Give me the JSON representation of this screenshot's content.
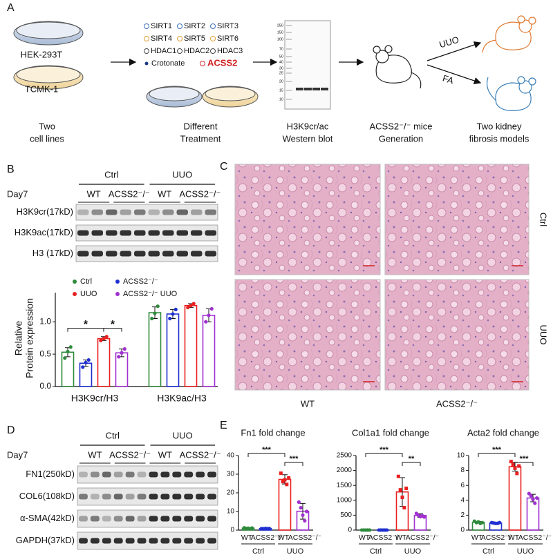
{
  "panel_a": {
    "label": "A",
    "cell_lines": [
      "HEK-293T",
      "TCMK-1"
    ],
    "treatments": [
      "SIRT1",
      "SIRT2",
      "SIRT3",
      "SIRT4",
      "SIRT5",
      "SIRT6",
      "HDAC1",
      "HDAC2",
      "HDAC3"
    ],
    "crotonate": "Crotonate",
    "acss2": "ACSS2",
    "ladder": [
      "250",
      "150",
      "100",
      "70",
      "50",
      "40",
      "30",
      "25",
      "20",
      "15",
      "10"
    ],
    "captions": [
      [
        "Two",
        "cell lines"
      ],
      [
        "Different",
        "Treatment"
      ],
      [
        "H3K9cr/ac",
        "Western blot"
      ],
      [
        "ACSS2⁻/⁻ mice",
        "Generation"
      ],
      [
        "Two kidney",
        "fibrosis models"
      ]
    ],
    "models": [
      "UUO",
      "FA"
    ]
  },
  "panel_b": {
    "label": "B",
    "groups": [
      "Ctrl",
      "UUO"
    ],
    "day": "Day7",
    "genotypes": [
      "WT",
      "ACSS2⁻/⁻",
      "WT",
      "ACSS2⁻/⁻"
    ],
    "rows": [
      "H3K9cr(17kD)",
      "H3K9ac(17kD)",
      "H3 (17kD)"
    ]
  },
  "panel_c": {
    "label": "C",
    "rows": [
      "Ctrl",
      "UUO"
    ],
    "columns": [
      "WT",
      "ACSS2⁻/⁻"
    ]
  },
  "panel_d": {
    "label": "D",
    "groups": [
      "Ctrl",
      "UUO"
    ],
    "day": "Day7",
    "genotypes": [
      "WT",
      "ACSS2⁻/⁻",
      "WT",
      "ACSS2⁻/⁻"
    ],
    "rows": [
      "FN1(250kD)",
      "COL6(108kD)",
      "α-SMA(42kD)",
      "GAPDH(37kD)"
    ]
  },
  "panel_e": {
    "label": "E"
  },
  "chart_data": [
    {
      "type": "grouped_bar",
      "y_label": [
        "Relative",
        "Protein expression"
      ],
      "categories": [
        "H3K9cr/H3",
        "H3K9ac/H3"
      ],
      "series": [
        {
          "name": "Ctrl",
          "color": "#2e8b3c",
          "values": [
            0.53,
            1.14
          ],
          "errors": [
            0.07,
            0.09
          ],
          "points": [
            [
              0.44,
              0.54,
              0.61
            ],
            [
              1.05,
              1.13,
              1.24
            ]
          ]
        },
        {
          "name": "ACSS2⁻/⁻",
          "color": "#1f2fd0",
          "values": [
            0.36,
            1.12
          ],
          "errors": [
            0.05,
            0.07
          ],
          "points": [
            [
              0.3,
              0.37,
              0.41
            ],
            [
              1.05,
              1.12,
              1.19
            ]
          ]
        },
        {
          "name": "UUO",
          "color": "#e8201f",
          "values": [
            0.74,
            1.25
          ],
          "errors": [
            0.03,
            0.03
          ],
          "points": [
            [
              0.71,
              0.74,
              0.77
            ],
            [
              1.22,
              1.25,
              1.28
            ]
          ]
        },
        {
          "name": "ACSS2⁻/⁻ UUO",
          "color": "#a030d0",
          "values": [
            0.52,
            1.1
          ],
          "errors": [
            0.06,
            0.1
          ],
          "points": [
            [
              0.46,
              0.52,
              0.58
            ],
            [
              1.0,
              1.1,
              1.2
            ]
          ]
        }
      ],
      "ylim": [
        0,
        1.45
      ],
      "yticks": [
        {
          "value": 0,
          "label": "0.0"
        },
        {
          "value": 0.5,
          "label": "0.5"
        },
        {
          "value": 1,
          "label": "1.0"
        }
      ],
      "significance": [
        "*",
        "*"
      ]
    },
    {
      "type": "bar",
      "title": "Fn1 fold change",
      "categories": [
        "WT",
        "ACSS2⁻/⁻",
        "WT",
        "ACSS2⁻/⁻"
      ],
      "groups": [
        "Ctrl",
        "UUO"
      ],
      "colors": [
        "#2e8b3c",
        "#1f2fd0",
        "#e8201f",
        "#a030d0"
      ],
      "values": [
        1.0,
        0.8,
        27.2,
        10.1
      ],
      "errors": [
        0.2,
        0.1,
        2.5,
        4.2
      ],
      "points": [
        [
          1.2,
          0.9,
          1.0,
          0.8,
          1.1
        ],
        [
          0.8,
          0.7,
          0.9,
          0.8,
          0.8
        ],
        [
          30.5,
          26,
          27,
          24.5,
          28
        ],
        [
          15,
          12,
          8,
          5,
          10
        ]
      ],
      "ylim": [
        0,
        40
      ],
      "yticks": [
        0,
        10,
        20,
        30,
        40
      ],
      "significance": [
        "***",
        "***"
      ]
    },
    {
      "type": "bar",
      "title": "Col1a1 fold change",
      "categories": [
        "WT",
        "ACSS2⁻/⁻",
        "WT",
        "ACSS2⁻/⁻"
      ],
      "groups": [
        "Ctrl",
        "UUO"
      ],
      "colors": [
        "#2e8b3c",
        "#1f2fd0",
        "#e8201f",
        "#a030d0"
      ],
      "values": [
        1,
        1,
        1280,
        490
      ],
      "errors": [
        20,
        20,
        480,
        60
      ],
      "points": [
        [
          1,
          1,
          1,
          1,
          1
        ],
        [
          1,
          1,
          1,
          1,
          1
        ],
        [
          1800,
          1350,
          1100,
          750,
          1400
        ],
        [
          560,
          500,
          450,
          480,
          440
        ]
      ],
      "ylim": [
        0,
        2500
      ],
      "yticks": [
        0,
        500,
        1000,
        1500,
        2000,
        2500
      ],
      "significance": [
        "***",
        "**"
      ]
    },
    {
      "type": "bar",
      "title": "Acta2 fold change",
      "categories": [
        "WT",
        "ACSS2⁻/⁻",
        "WT",
        "ACSS2⁻/⁻"
      ],
      "groups": [
        "Ctrl",
        "UUO"
      ],
      "colors": [
        "#2e8b3c",
        "#1f2fd0",
        "#e8201f",
        "#a030d0"
      ],
      "values": [
        1.05,
        0.95,
        8.5,
        4.3
      ],
      "errors": [
        0.1,
        0.08,
        0.6,
        0.5
      ],
      "points": [
        [
          1.2,
          1.0,
          1.1,
          0.9,
          1.0
        ],
        [
          1.0,
          0.95,
          0.9,
          0.9,
          1.0
        ],
        [
          9.2,
          8.8,
          8.3,
          7.6,
          8.6
        ],
        [
          4.9,
          4.6,
          4.1,
          3.6,
          4.3
        ]
      ],
      "ylim": [
        0,
        10
      ],
      "yticks": [
        0,
        2,
        4,
        6,
        8,
        10
      ],
      "significance": [
        "***",
        "***"
      ]
    }
  ]
}
